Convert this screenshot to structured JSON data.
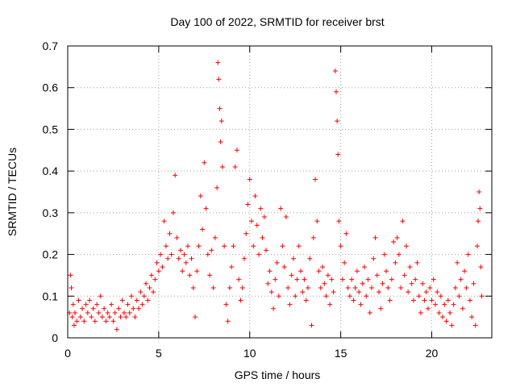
{
  "chart_data": {
    "type": "scatter",
    "title": "Day 100 of 2022, SRMTID for receiver brst",
    "xlabel": "GPS time / hours",
    "ylabel": "SRMTID / TECUs",
    "xlim": [
      0,
      23.3
    ],
    "ylim": [
      0,
      0.7
    ],
    "x_ticks": [
      0,
      5,
      10,
      15,
      20
    ],
    "y_ticks": [
      0,
      0.1,
      0.2,
      0.3,
      0.4,
      0.5,
      0.6,
      0.7
    ],
    "x_tick_labels": [
      "0",
      "5",
      "10",
      "15",
      "20"
    ],
    "y_tick_labels": [
      "0",
      "0.1",
      "0.2",
      "0.3",
      "0.4",
      "0.5",
      "0.6",
      "0.7"
    ],
    "grid": true,
    "marker": "+",
    "color": "#ff0000",
    "series": [
      {
        "name": "SRMTID",
        "points": [
          [
            0.1,
            0.06
          ],
          [
            0.15,
            0.15
          ],
          [
            0.2,
            0.12
          ],
          [
            0.25,
            0.05
          ],
          [
            0.3,
            0.08
          ],
          [
            0.35,
            0.03
          ],
          [
            0.4,
            0.06
          ],
          [
            0.5,
            0.04
          ],
          [
            0.6,
            0.09
          ],
          [
            0.7,
            0.05
          ],
          [
            0.8,
            0.07
          ],
          [
            0.9,
            0.04
          ],
          [
            1.0,
            0.08
          ],
          [
            1.1,
            0.06
          ],
          [
            1.2,
            0.09
          ],
          [
            1.3,
            0.05
          ],
          [
            1.4,
            0.07
          ],
          [
            1.5,
            0.04
          ],
          [
            1.6,
            0.08
          ],
          [
            1.7,
            0.06
          ],
          [
            1.8,
            0.1
          ],
          [
            1.9,
            0.05
          ],
          [
            2.0,
            0.07
          ],
          [
            2.1,
            0.04
          ],
          [
            2.2,
            0.06
          ],
          [
            2.3,
            0.05
          ],
          [
            2.4,
            0.08
          ],
          [
            2.5,
            0.04
          ],
          [
            2.6,
            0.06
          ],
          [
            2.7,
            0.02
          ],
          [
            2.8,
            0.07
          ],
          [
            2.9,
            0.05
          ],
          [
            3.0,
            0.09
          ],
          [
            3.1,
            0.06
          ],
          [
            3.2,
            0.05
          ],
          [
            3.3,
            0.08
          ],
          [
            3.4,
            0.06
          ],
          [
            3.5,
            0.1
          ],
          [
            3.6,
            0.07
          ],
          [
            3.7,
            0.05
          ],
          [
            3.8,
            0.09
          ],
          [
            3.9,
            0.07
          ],
          [
            4.0,
            0.11
          ],
          [
            4.1,
            0.08
          ],
          [
            4.2,
            0.1
          ],
          [
            4.3,
            0.13
          ],
          [
            4.4,
            0.09
          ],
          [
            4.5,
            0.12
          ],
          [
            4.6,
            0.15
          ],
          [
            4.7,
            0.11
          ],
          [
            4.8,
            0.14
          ],
          [
            4.9,
            0.18
          ],
          [
            5.0,
            0.16
          ],
          [
            5.1,
            0.2
          ],
          [
            5.2,
            0.17
          ],
          [
            5.3,
            0.28
          ],
          [
            5.4,
            0.22
          ],
          [
            5.5,
            0.19
          ],
          [
            5.6,
            0.25
          ],
          [
            5.7,
            0.2
          ],
          [
            5.8,
            0.3
          ],
          [
            5.9,
            0.39
          ],
          [
            6.0,
            0.24
          ],
          [
            6.1,
            0.19
          ],
          [
            6.2,
            0.21
          ],
          [
            6.3,
            0.16
          ],
          [
            6.4,
            0.2
          ],
          [
            6.5,
            0.18
          ],
          [
            6.6,
            0.22
          ],
          [
            6.7,
            0.15
          ],
          [
            6.8,
            0.19
          ],
          [
            6.9,
            0.12
          ],
          [
            7.0,
            0.05
          ],
          [
            7.1,
            0.16
          ],
          [
            7.2,
            0.22
          ],
          [
            7.3,
            0.34
          ],
          [
            7.4,
            0.26
          ],
          [
            7.5,
            0.42
          ],
          [
            7.6,
            0.31
          ],
          [
            7.7,
            0.2
          ],
          [
            7.8,
            0.15
          ],
          [
            7.9,
            0.21
          ],
          [
            8.0,
            0.12
          ],
          [
            8.1,
            0.24
          ],
          [
            8.2,
            0.36
          ],
          [
            8.25,
            0.66
          ],
          [
            8.3,
            0.62
          ],
          [
            8.35,
            0.55
          ],
          [
            8.4,
            0.47
          ],
          [
            8.45,
            0.52
          ],
          [
            8.5,
            0.41
          ],
          [
            8.6,
            0.22
          ],
          [
            8.7,
            0.08
          ],
          [
            8.8,
            0.04
          ],
          [
            8.9,
            0.12
          ],
          [
            9.0,
            0.17
          ],
          [
            9.1,
            0.22
          ],
          [
            9.2,
            0.41
          ],
          [
            9.3,
            0.45
          ],
          [
            9.4,
            0.14
          ],
          [
            9.5,
            0.09
          ],
          [
            9.6,
            0.12
          ],
          [
            9.7,
            0.19
          ],
          [
            9.8,
            0.25
          ],
          [
            9.9,
            0.32
          ],
          [
            10.0,
            0.38
          ],
          [
            10.1,
            0.28
          ],
          [
            10.2,
            0.22
          ],
          [
            10.3,
            0.34
          ],
          [
            10.4,
            0.27
          ],
          [
            10.5,
            0.2
          ],
          [
            10.6,
            0.31
          ],
          [
            10.7,
            0.24
          ],
          [
            10.8,
            0.29
          ],
          [
            10.9,
            0.21
          ],
          [
            11.0,
            0.13
          ],
          [
            11.1,
            0.16
          ],
          [
            11.2,
            0.11
          ],
          [
            11.3,
            0.07
          ],
          [
            11.4,
            0.14
          ],
          [
            11.5,
            0.18
          ],
          [
            11.6,
            0.1
          ],
          [
            11.7,
            0.31
          ],
          [
            11.8,
            0.22
          ],
          [
            11.9,
            0.17
          ],
          [
            12.0,
            0.29
          ],
          [
            12.1,
            0.12
          ],
          [
            12.2,
            0.08
          ],
          [
            12.3,
            0.15
          ],
          [
            12.4,
            0.19
          ],
          [
            12.5,
            0.1
          ],
          [
            12.6,
            0.14
          ],
          [
            12.7,
            0.22
          ],
          [
            12.8,
            0.16
          ],
          [
            12.9,
            0.11
          ],
          [
            13.0,
            0.14
          ],
          [
            13.1,
            0.09
          ],
          [
            13.2,
            0.12
          ],
          [
            13.3,
            0.19
          ],
          [
            13.4,
            0.03
          ],
          [
            13.5,
            0.24
          ],
          [
            13.6,
            0.38
          ],
          [
            13.7,
            0.28
          ],
          [
            13.8,
            0.16
          ],
          [
            13.9,
            0.12
          ],
          [
            14.0,
            0.17
          ],
          [
            14.1,
            0.13
          ],
          [
            14.2,
            0.1
          ],
          [
            14.3,
            0.15
          ],
          [
            14.4,
            0.08
          ],
          [
            14.5,
            0.14
          ],
          [
            14.6,
            0.11
          ],
          [
            14.7,
            0.64
          ],
          [
            14.75,
            0.59
          ],
          [
            14.8,
            0.52
          ],
          [
            14.85,
            0.44
          ],
          [
            14.9,
            0.28
          ],
          [
            15.0,
            0.22
          ],
          [
            15.1,
            0.14
          ],
          [
            15.2,
            0.18
          ],
          [
            15.3,
            0.25
          ],
          [
            15.4,
            0.12
          ],
          [
            15.5,
            0.1
          ],
          [
            15.6,
            0.14
          ],
          [
            15.7,
            0.09
          ],
          [
            15.8,
            0.12
          ],
          [
            15.9,
            0.16
          ],
          [
            16.0,
            0.11
          ],
          [
            16.1,
            0.08
          ],
          [
            16.2,
            0.13
          ],
          [
            16.3,
            0.17
          ],
          [
            16.4,
            0.1
          ],
          [
            16.5,
            0.14
          ],
          [
            16.6,
            0.06
          ],
          [
            16.7,
            0.12
          ],
          [
            16.8,
            0.19
          ],
          [
            16.9,
            0.24
          ],
          [
            17.0,
            0.15
          ],
          [
            17.1,
            0.11
          ],
          [
            17.2,
            0.07
          ],
          [
            17.3,
            0.13
          ],
          [
            17.4,
            0.2
          ],
          [
            17.5,
            0.16
          ],
          [
            17.6,
            0.12
          ],
          [
            17.7,
            0.09
          ],
          [
            17.8,
            0.14
          ],
          [
            17.9,
            0.23
          ],
          [
            18.0,
            0.18
          ],
          [
            18.1,
            0.24
          ],
          [
            18.2,
            0.2
          ],
          [
            18.3,
            0.12
          ],
          [
            18.4,
            0.28
          ],
          [
            18.5,
            0.15
          ],
          [
            18.6,
            0.22
          ],
          [
            18.7,
            0.11
          ],
          [
            18.8,
            0.17
          ],
          [
            18.9,
            0.13
          ],
          [
            19.0,
            0.09
          ],
          [
            19.1,
            0.14
          ],
          [
            19.2,
            0.18
          ],
          [
            19.3,
            0.1
          ],
          [
            19.4,
            0.06
          ],
          [
            19.5,
            0.13
          ],
          [
            19.6,
            0.09
          ],
          [
            19.7,
            0.11
          ],
          [
            19.8,
            0.07
          ],
          [
            19.9,
            0.12
          ],
          [
            20.0,
            0.09
          ],
          [
            20.1,
            0.14
          ],
          [
            20.2,
            0.08
          ],
          [
            20.3,
            0.11
          ],
          [
            20.4,
            0.06
          ],
          [
            20.5,
            0.1
          ],
          [
            20.6,
            0.05
          ],
          [
            20.7,
            0.08
          ],
          [
            20.8,
            0.04
          ],
          [
            20.9,
            0.09
          ],
          [
            21.0,
            0.06
          ],
          [
            21.1,
            0.03
          ],
          [
            21.2,
            0.08
          ],
          [
            21.3,
            0.12
          ],
          [
            21.4,
            0.18
          ],
          [
            21.5,
            0.1
          ],
          [
            21.6,
            0.14
          ],
          [
            21.7,
            0.07
          ],
          [
            21.8,
            0.16
          ],
          [
            21.9,
            0.12
          ],
          [
            22.0,
            0.2
          ],
          [
            22.1,
            0.09
          ],
          [
            22.2,
            0.05
          ],
          [
            22.3,
            0.13
          ],
          [
            22.4,
            0.03
          ],
          [
            22.5,
            0.22
          ],
          [
            22.55,
            0.28
          ],
          [
            22.6,
            0.35
          ],
          [
            22.65,
            0.31
          ],
          [
            22.7,
            0.17
          ],
          [
            22.75,
            0.1
          ]
        ]
      }
    ]
  }
}
